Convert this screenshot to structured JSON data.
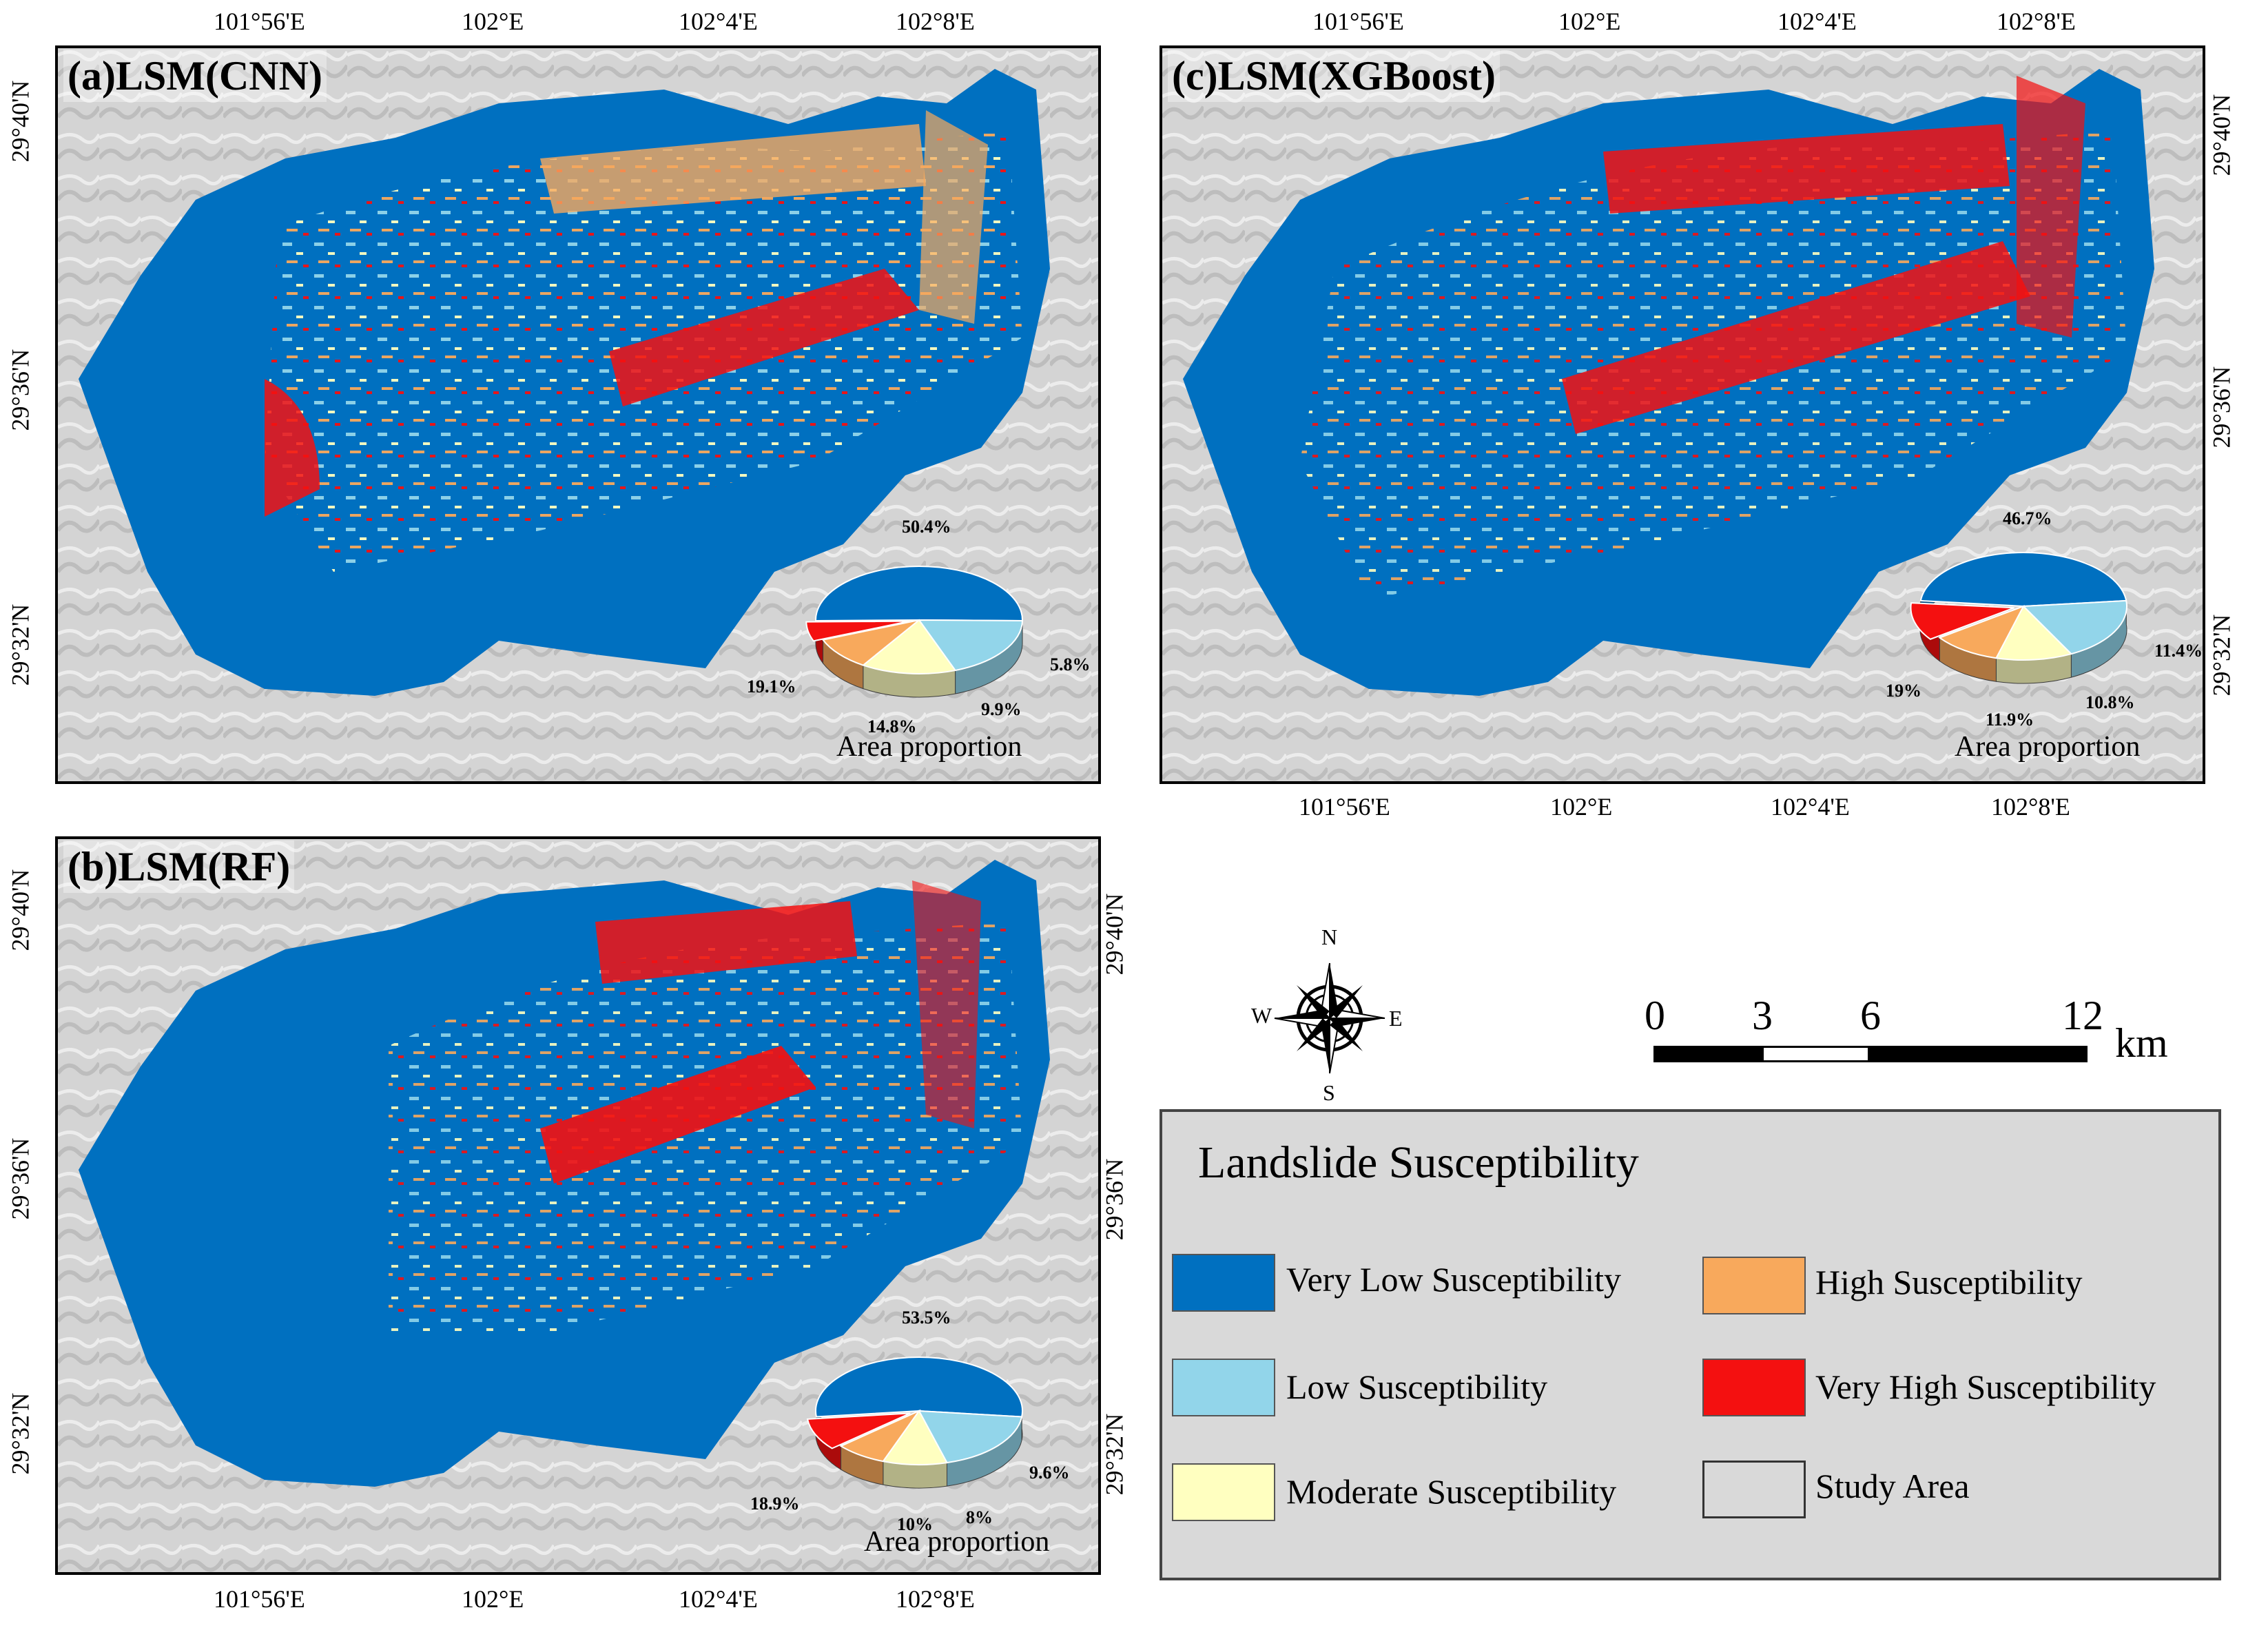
{
  "panels": {
    "a": {
      "title": "(a)LSM(CNN)",
      "pie": {
        "values": [
          "50.4%",
          "19.1%",
          "14.8%",
          "9.9%",
          "5.8%"
        ],
        "fractions": [
          0.504,
          0.191,
          0.148,
          0.099,
          0.058
        ]
      }
    },
    "b": {
      "title": "(b)LSM(RF)",
      "pie": {
        "values": [
          "53.5%",
          "18.9%",
          "10%",
          "8%",
          "9.6%"
        ],
        "fractions": [
          0.535,
          0.189,
          0.1,
          0.08,
          0.096
        ]
      }
    },
    "c": {
      "title": "(c)LSM(XGBoost)",
      "pie": {
        "values": [
          "46.7%",
          "19%",
          "11.9%",
          "10.8%",
          "11.4%"
        ],
        "fractions": [
          0.467,
          0.19,
          0.119,
          0.108,
          0.114
        ]
      }
    }
  },
  "pie_caption": "Area proportion",
  "axis_ticks": {
    "lon": [
      "101°56'E",
      "102°E",
      "102°4'E",
      "102°8'E"
    ],
    "lat": [
      "29°40'N",
      "29°36'N",
      "29°32'N"
    ]
  },
  "compass": {
    "n": "N",
    "s": "S",
    "e": "E",
    "w": "W"
  },
  "scalebar": {
    "ticks": [
      "0",
      "3",
      "6",
      "12"
    ],
    "unit": "km"
  },
  "legend": {
    "title": "Landslide Susceptibility",
    "items": [
      {
        "label": "Very Low Susceptibility",
        "color": "#0070c0"
      },
      {
        "label": "Low Susceptibility",
        "color": "#92d5ea"
      },
      {
        "label": "Moderate Susceptibility",
        "color": "#ffffc0"
      },
      {
        "label": "High Susceptibility",
        "color": "#f8a95c"
      },
      {
        "label": "Very High Susceptibility",
        "color": "#f41010"
      },
      {
        "label": "Study Area",
        "color": "#d9d9d9"
      }
    ]
  }
}
